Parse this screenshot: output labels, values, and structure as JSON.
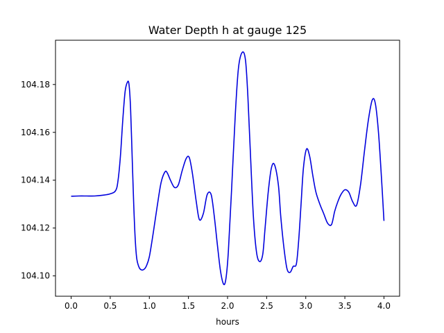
{
  "chart_data": {
    "type": "line",
    "title": "Water Depth h at gauge 125",
    "xlabel": "hours",
    "ylabel": "",
    "xlim": [
      -0.2,
      4.2
    ],
    "ylim": [
      104.0915,
      104.1985
    ],
    "xticks": [
      0.0,
      0.5,
      1.0,
      1.5,
      2.0,
      2.5,
      3.0,
      3.5,
      4.0
    ],
    "xtick_labels": [
      "0.0",
      "0.5",
      "1.0",
      "1.5",
      "2.0",
      "2.5",
      "3.0",
      "3.5",
      "4.0"
    ],
    "yticks": [
      104.1,
      104.12,
      104.14,
      104.16,
      104.18
    ],
    "ytick_labels": [
      "104.10",
      "104.12",
      "104.14",
      "104.16",
      "104.18"
    ],
    "grid": false,
    "series": [
      {
        "color": "#0000dd",
        "x": [
          0.0,
          0.1,
          0.2,
          0.3,
          0.4,
          0.5,
          0.57,
          0.6,
          0.63,
          0.66,
          0.69,
          0.72,
          0.74,
          0.76,
          0.78,
          0.8,
          0.82,
          0.84,
          0.87,
          0.9,
          0.93,
          0.96,
          1.0,
          1.05,
          1.1,
          1.15,
          1.2,
          1.23,
          1.27,
          1.32,
          1.37,
          1.42,
          1.47,
          1.51,
          1.55,
          1.6,
          1.64,
          1.69,
          1.74,
          1.79,
          1.83,
          1.87,
          1.91,
          1.95,
          1.98,
          2.01,
          2.05,
          2.1,
          2.14,
          2.19,
          2.23,
          2.26,
          2.29,
          2.33,
          2.37,
          2.41,
          2.45,
          2.48,
          2.52,
          2.56,
          2.6,
          2.65,
          2.68,
          2.72,
          2.76,
          2.8,
          2.84,
          2.88,
          2.91,
          2.94,
          2.97,
          3.01,
          3.05,
          3.09,
          3.13,
          3.18,
          3.23,
          3.28,
          3.33,
          3.37,
          3.41,
          3.45,
          3.5,
          3.55,
          3.6,
          3.65,
          3.7,
          3.75,
          3.8,
          3.85,
          3.89,
          3.93,
          3.97,
          4.0
        ],
        "y": [
          104.1333,
          104.1334,
          104.1334,
          104.1334,
          104.1337,
          104.1343,
          104.1357,
          104.14,
          104.15,
          104.165,
          104.177,
          104.181,
          104.18,
          104.17,
          104.15,
          104.13,
          104.115,
          104.107,
          104.1035,
          104.1025,
          104.1027,
          104.104,
          104.108,
          104.118,
          104.129,
          104.139,
          104.1435,
          104.143,
          104.14,
          104.137,
          104.138,
          104.144,
          104.149,
          104.1495,
          104.143,
          104.131,
          104.1235,
          104.126,
          104.134,
          104.134,
          104.125,
          104.113,
          104.102,
          104.0965,
          104.099,
          104.11,
          104.135,
          104.168,
          104.187,
          104.1935,
          104.19,
          104.175,
          104.153,
          104.125,
          104.11,
          104.106,
          104.109,
          104.12,
          104.135,
          104.145,
          104.1465,
          104.138,
          104.125,
          104.112,
          104.103,
          104.1015,
          104.104,
          104.105,
          104.115,
          104.13,
          104.145,
          104.153,
          104.15,
          104.142,
          104.135,
          104.13,
          104.126,
          104.122,
          104.1215,
          104.127,
          104.131,
          104.134,
          104.136,
          104.135,
          104.131,
          104.1295,
          104.138,
          104.152,
          104.165,
          104.1735,
          104.172,
          104.16,
          104.14,
          104.123
        ]
      }
    ]
  }
}
